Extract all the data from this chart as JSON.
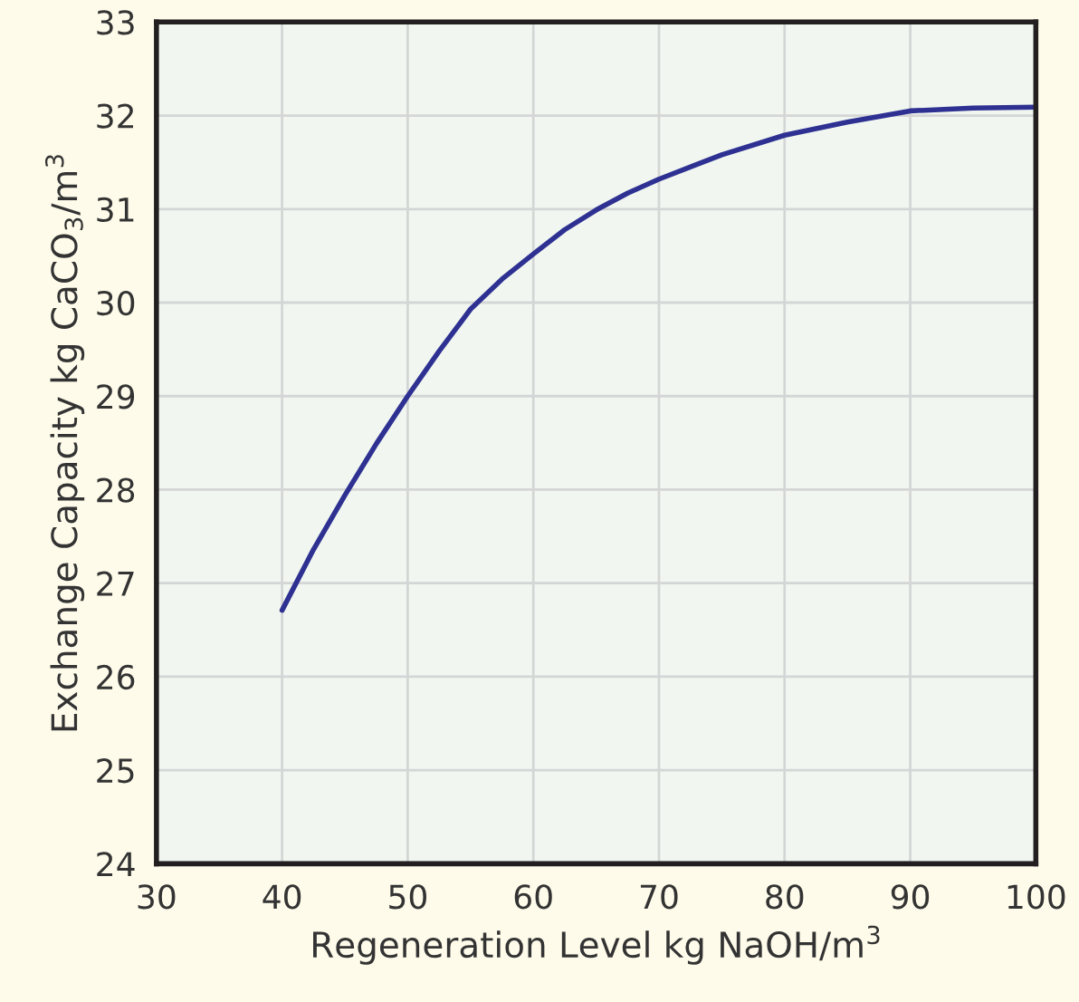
{
  "chart_data": {
    "type": "line",
    "xlabel": "Regeneration Level kg NaOH/m$^{3}$",
    "ylabel": "Exchange Capacity kg CaCO$_{3}$/m$^{3}$",
    "series": [
      {
        "color": "#2e3192",
        "x": [
          40,
          42.5,
          45,
          47.5,
          50,
          52.5,
          55,
          57.5,
          60,
          62.5,
          65,
          67.5,
          70,
          75,
          80,
          85,
          90,
          95,
          100
        ],
        "values": [
          26.71,
          27.36,
          27.94,
          28.49,
          29.0,
          29.48,
          29.93,
          30.25,
          30.52,
          30.78,
          30.99,
          31.17,
          31.32,
          31.58,
          31.79,
          31.93,
          32.05,
          32.08,
          32.09
        ]
      }
    ],
    "xlim": [
      30,
      100
    ],
    "xticks": [
      30,
      40,
      50,
      60,
      70,
      80,
      90,
      100
    ],
    "ylim": [
      24,
      33
    ],
    "yticks": [
      24,
      25,
      26,
      27,
      28,
      29,
      30,
      31,
      32,
      33
    ],
    "grid": true,
    "marker": "none",
    "line_style": "solid"
  }
}
